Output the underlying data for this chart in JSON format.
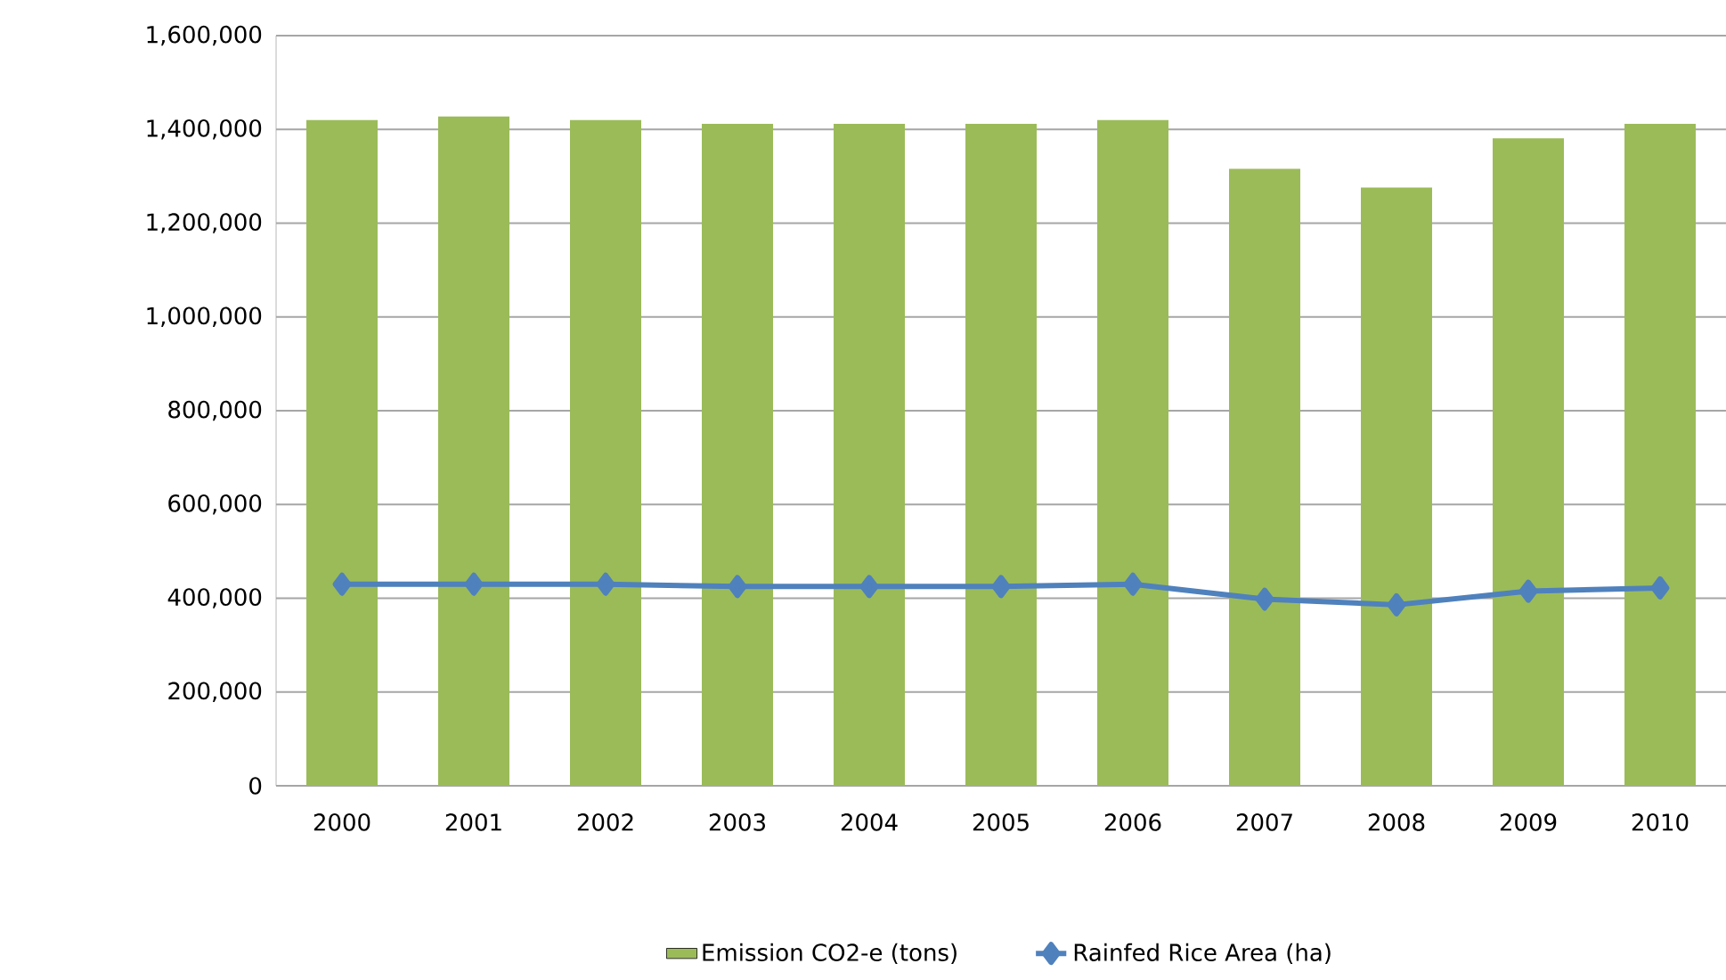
{
  "chart_data": {
    "type": "bar",
    "categories": [
      "2000",
      "2001",
      "2002",
      "2003",
      "2004",
      "2005",
      "2006",
      "2007",
      "2008",
      "2009",
      "2010"
    ],
    "series": [
      {
        "name": "Emission  CO2-e (tons)",
        "color": "#9bbb59",
        "values": [
          1420000,
          1428000,
          1420000,
          1412000,
          1412000,
          1412000,
          1420000,
          1316000,
          1276000,
          1381000,
          1412000
        ]
      },
      {
        "name": "Rainfed Rice Area (ha)",
        "type": "line",
        "color": "#4f81bd",
        "marker": "diamond",
        "values": [
          430000,
          430000,
          430000,
          425000,
          425000,
          425000,
          430000,
          398000,
          386000,
          415000,
          422000
        ]
      }
    ],
    "ylim": [
      0,
      1600000
    ],
    "yticks": [
      {
        "value": 0,
        "label": "0"
      },
      {
        "value": 200000,
        "label": "200,000"
      },
      {
        "value": 400000,
        "label": "400,000"
      },
      {
        "value": 600000,
        "label": "600,000"
      },
      {
        "value": 800000,
        "label": "800,000"
      },
      {
        "value": 1000000,
        "label": "1,000,000"
      },
      {
        "value": 1200000,
        "label": "1,200,000"
      },
      {
        "value": 1400000,
        "label": "1,400,000"
      },
      {
        "value": 1600000,
        "label": "1,600,000"
      }
    ],
    "grid": "y",
    "legend": "bottom"
  }
}
